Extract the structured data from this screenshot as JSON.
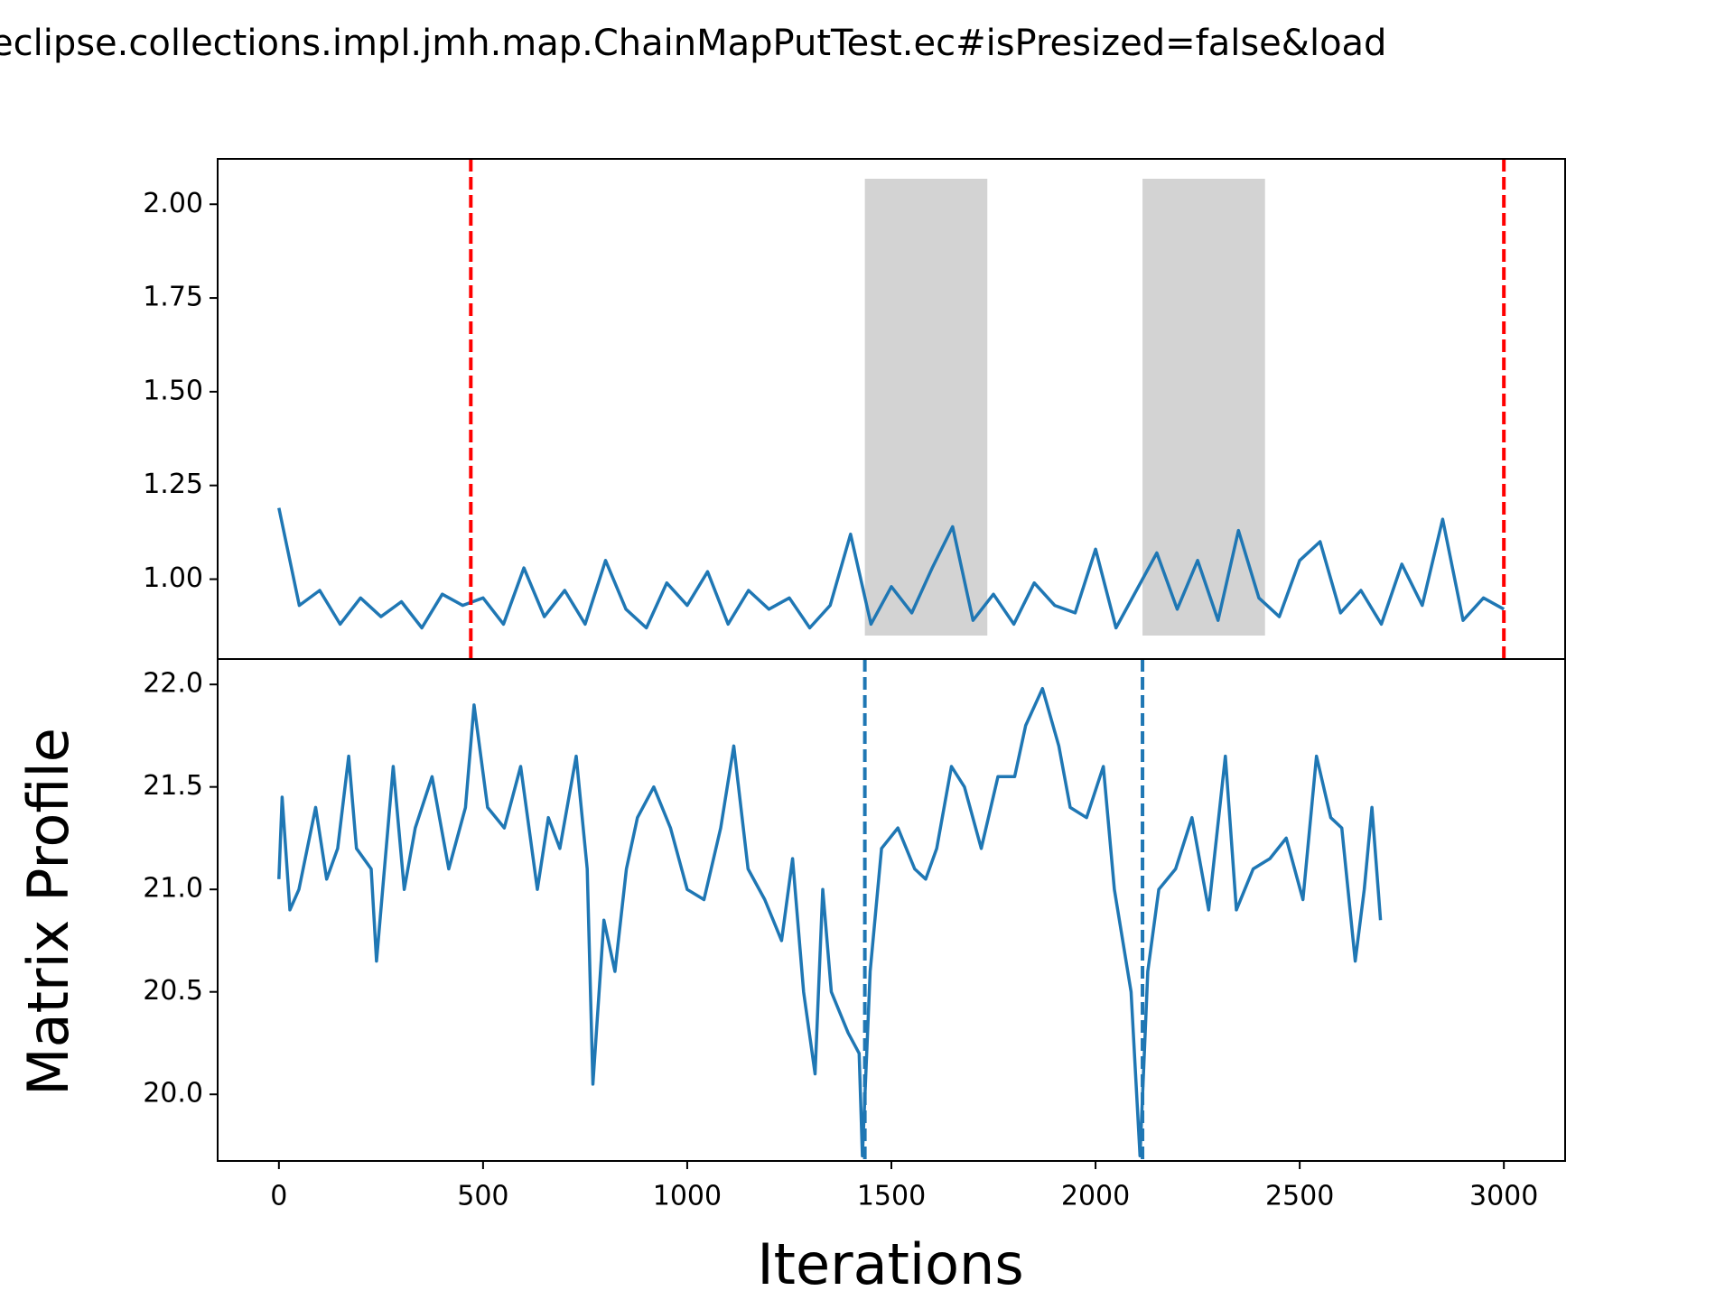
{
  "chart_data": [
    {
      "type": "line",
      "title": "eclipse.collections.impl.jmh.map.ChainMapPutTest.ec#isPresized=false&load",
      "xlim": [
        -150,
        3150
      ],
      "ylim": [
        0.787,
        2.121
      ],
      "yticks": [
        {
          "value": 1,
          "label": "1.00"
        },
        1.25,
        {
          "value": 1.5,
          "label": "1.50"
        },
        1.75,
        {
          "value": 2,
          "label": "2.00"
        }
      ],
      "spans": [
        [
          1435,
          1735
        ],
        [
          2115,
          2415
        ]
      ],
      "span_color": "#d3d3d3",
      "vlines": [
        470,
        3000
      ],
      "vline_color": "#ff0000",
      "series": [
        {
          "color": "#1f77b4",
          "x": [
            0,
            50,
            100,
            150,
            200,
            250,
            300,
            350,
            400,
            450,
            500,
            550,
            600,
            650,
            700,
            750,
            800,
            850,
            900,
            950,
            1000,
            1050,
            1100,
            1150,
            1200,
            1250,
            1300,
            1350,
            1400,
            1450,
            1500,
            1550,
            1600,
            1650,
            1700,
            1750,
            1800,
            1850,
            1900,
            1950,
            2000,
            2050,
            2100,
            2150,
            2200,
            2250,
            2300,
            2350,
            2400,
            2450,
            2500,
            2550,
            2600,
            2650,
            2700,
            2750,
            2800,
            2850,
            2900,
            2950,
            3000
          ],
          "values": [
            1.19,
            0.93,
            0.97,
            0.88,
            0.95,
            0.9,
            0.94,
            0.87,
            0.96,
            0.93,
            0.95,
            0.88,
            1.03,
            0.9,
            0.97,
            0.88,
            1.05,
            0.92,
            0.87,
            0.99,
            0.93,
            1.02,
            0.88,
            0.97,
            0.92,
            0.95,
            0.87,
            0.93,
            1.12,
            0.88,
            0.98,
            0.91,
            1.03,
            1.14,
            0.89,
            0.96,
            0.88,
            0.99,
            0.93,
            0.91,
            1.08,
            0.87,
            0.97,
            1.07,
            0.92,
            1.05,
            0.89,
            1.13,
            0.95,
            0.9,
            1.05,
            1.1,
            0.91,
            0.97,
            0.88,
            1.04,
            0.93,
            1.16,
            0.89,
            0.95,
            0.92
          ]
        }
      ]
    },
    {
      "type": "line",
      "xlabel": "Iterations",
      "ylabel": "Matrix Profile",
      "xlim": [
        -150,
        3150
      ],
      "ylim": [
        19.675,
        22.124
      ],
      "xticks": [
        0,
        500,
        1000,
        1500,
        2000,
        2500,
        3000
      ],
      "yticks": [
        {
          "value": 20,
          "label": "20.0"
        },
        20.5,
        {
          "value": 21,
          "label": "21.0"
        },
        21.5,
        {
          "value": 22,
          "label": "22.0"
        }
      ],
      "vlines": [
        1435,
        2115
      ],
      "vline_color": "#1f77b4",
      "series": [
        {
          "color": "#1f77b4",
          "x": [
            0,
            8,
            27,
            49,
            90,
            117,
            144,
            171,
            190,
            226,
            239,
            280,
            307,
            334,
            375,
            416,
            457,
            478,
            511,
            552,
            592,
            633,
            660,
            688,
            728,
            755,
            769,
            796,
            823,
            851,
            878,
            918,
            959,
            1000,
            1041,
            1082,
            1114,
            1149,
            1190,
            1231,
            1258,
            1285,
            1313,
            1332,
            1353,
            1394,
            1421,
            1429,
            1448,
            1476,
            1516,
            1557,
            1584,
            1611,
            1647,
            1679,
            1720,
            1761,
            1802,
            1829,
            1870,
            1910,
            1938,
            1978,
            2019,
            2046,
            2087,
            2109,
            2128,
            2155,
            2196,
            2236,
            2277,
            2318,
            2345,
            2386,
            2427,
            2467,
            2508,
            2541,
            2576,
            2603,
            2636,
            2658,
            2677,
            2698
          ],
          "values": [
            21.05,
            21.45,
            20.9,
            21.0,
            21.4,
            21.05,
            21.2,
            21.65,
            21.2,
            21.1,
            20.65,
            21.6,
            21.0,
            21.3,
            21.55,
            21.1,
            21.4,
            21.9,
            21.4,
            21.3,
            21.6,
            21.0,
            21.35,
            21.2,
            21.65,
            21.1,
            20.05,
            20.85,
            20.6,
            21.1,
            21.35,
            21.5,
            21.3,
            21.0,
            20.95,
            21.3,
            21.7,
            21.1,
            20.95,
            20.75,
            21.15,
            20.5,
            20.1,
            21.0,
            20.5,
            20.3,
            20.2,
            19.7,
            20.6,
            21.2,
            21.3,
            21.1,
            21.05,
            21.2,
            21.6,
            21.5,
            21.2,
            21.55,
            21.55,
            21.8,
            21.98,
            21.7,
            21.4,
            21.35,
            21.6,
            21.0,
            20.5,
            19.7,
            20.6,
            21.0,
            21.1,
            21.35,
            20.9,
            21.65,
            20.9,
            21.1,
            21.15,
            21.25,
            20.95,
            21.65,
            21.35,
            21.3,
            20.65,
            21.0,
            21.4,
            20.85
          ]
        }
      ]
    }
  ]
}
